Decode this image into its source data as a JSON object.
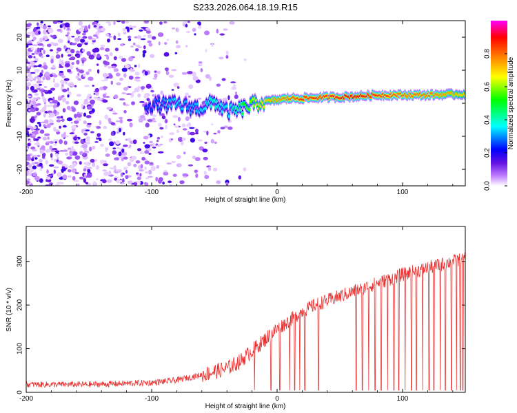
{
  "title": "S233.2026.064.18.19.R15",
  "chart_data": [
    {
      "type": "heatmap",
      "name": "spectrogram",
      "xlabel": "Height of straight line (km)",
      "ylabel": "Frequency (Hz)",
      "xlim": [
        -200,
        150
      ],
      "ylim": [
        -25,
        25
      ],
      "xticks": [
        -200,
        -100,
        0,
        100
      ],
      "xtick_labels": [
        "-200",
        "-100",
        "0",
        "100"
      ],
      "yticks": [
        -20,
        -10,
        0,
        10,
        20
      ],
      "ytick_labels": [
        "-20",
        "-10",
        "0",
        "10",
        "20"
      ],
      "colorbar": {
        "label": "Normalized spectral amplitude",
        "range": [
          0.0,
          1.0
        ],
        "ticks": [
          0.0,
          0.2,
          0.4,
          0.6,
          0.8
        ],
        "tick_labels": [
          "0.0",
          "0.2",
          "0.4",
          "0.6",
          "0.8"
        ],
        "colormap": [
          "#ffffff",
          "#c080ff",
          "#6010e0",
          "#0000ff",
          "#00ffff",
          "#00ff00",
          "#ffff00",
          "#ff8000",
          "#ff0000",
          "#ff00ff"
        ]
      },
      "ridge": {
        "description_x": [
          -100,
          -90,
          -80,
          -70,
          -60,
          -50,
          -40,
          -30,
          -20,
          -10,
          0,
          10,
          20,
          40,
          60,
          80,
          100,
          120,
          150
        ],
        "frequency": [
          -0.5,
          -0.5,
          -0.3,
          -1.2,
          -1.5,
          0.5,
          -2.5,
          -2.0,
          -0.5,
          0.5,
          1.0,
          1.5,
          1.5,
          1.8,
          2.0,
          2.5,
          2.5,
          2.5,
          2.8
        ],
        "amplitude": [
          0.25,
          0.3,
          0.35,
          0.3,
          0.35,
          0.4,
          0.35,
          0.45,
          0.6,
          0.7,
          0.75,
          0.8,
          0.85,
          0.85,
          0.9,
          0.85,
          0.8,
          0.8,
          0.7
        ]
      }
    },
    {
      "type": "line",
      "name": "snr",
      "xlabel": "Height of straight line (km)",
      "ylabel": "SNR (10 * v/v)",
      "xlim": [
        -200,
        150
      ],
      "ylim": [
        0,
        380
      ],
      "xticks": [
        -200,
        -100,
        0,
        100
      ],
      "xtick_labels": [
        "-200",
        "-100",
        "0",
        "100"
      ],
      "yticks": [
        0,
        100,
        200,
        300
      ],
      "ytick_labels": [
        "0",
        "100",
        "200",
        "300"
      ],
      "color": "#e83030",
      "trend_x": [
        -200,
        -150,
        -100,
        -80,
        -60,
        -40,
        -30,
        -20,
        -10,
        0,
        10,
        20,
        30,
        40,
        60,
        80,
        100,
        120,
        140,
        150
      ],
      "trend_y": [
        18,
        18,
        22,
        28,
        40,
        55,
        70,
        95,
        120,
        145,
        165,
        185,
        200,
        210,
        230,
        250,
        270,
        285,
        300,
        305
      ],
      "dropout_x": [
        -18,
        -5,
        2,
        10,
        14,
        18,
        22,
        33,
        63,
        68,
        73,
        78,
        83,
        88,
        93,
        97,
        102,
        107,
        111,
        116,
        121,
        125,
        130,
        134,
        139,
        143,
        146,
        148
      ]
    }
  ]
}
